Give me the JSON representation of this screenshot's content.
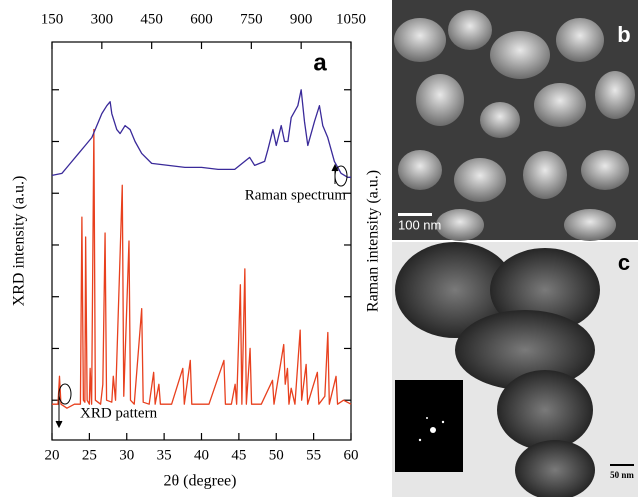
{
  "chart_data": {
    "type": "line",
    "xlabel": "2θ (degree)",
    "ylabel": "XRD intensity (a.u.)",
    "y2label": "Raman intensity (a.u.)",
    "panel_label": "a",
    "xlim": [
      20,
      60
    ],
    "xticks": [
      20,
      25,
      30,
      35,
      40,
      45,
      50,
      55,
      60
    ],
    "x2lim": [
      150,
      1050
    ],
    "x2ticks": [
      150,
      300,
      450,
      600,
      750,
      900,
      1050
    ],
    "ylim": [
      0,
      100
    ],
    "yticks": [
      10,
      23,
      36,
      49,
      62,
      75,
      88
    ],
    "series": [
      {
        "name": "XRD pattern",
        "color": "#e8401e",
        "axis": "x",
        "x": [
          20,
          20.8,
          21,
          21.2,
          22,
          23,
          23.8,
          24,
          24.2,
          24.4,
          24.5,
          24.7,
          25,
          25.1,
          25.3,
          25.6,
          25.8,
          26.5,
          26.8,
          27.1,
          27.3,
          28,
          28.2,
          28.5,
          29.4,
          29.6,
          30.3,
          30.5,
          31,
          32,
          32.2,
          33,
          33.6,
          33.8,
          34.3,
          34.5,
          36,
          37.5,
          37.7,
          38.5,
          38.7,
          40,
          41,
          43,
          43.2,
          44,
          44.5,
          44.7,
          45.2,
          45.4,
          45.8,
          46,
          46.5,
          46.7,
          48,
          49.5,
          49.7,
          51,
          51.2,
          51.5,
          51.7,
          52,
          52.5,
          53.2,
          53.4,
          54,
          54.2,
          55,
          55.5,
          55.7,
          56.5,
          56.9,
          57.1,
          58,
          58.2,
          59,
          60
        ],
        "values": [
          9,
          9,
          16,
          9,
          8,
          9,
          9,
          56,
          10,
          9.5,
          51,
          10,
          9,
          18,
          9,
          78,
          10,
          9,
          14,
          52,
          10,
          9.5,
          16,
          10,
          64,
          11,
          50,
          10,
          9,
          33,
          9.5,
          9,
          17,
          9,
          14,
          9,
          9,
          18,
          9,
          20,
          9,
          9,
          9,
          20,
          9,
          9,
          14,
          9,
          39,
          9,
          43,
          9,
          23,
          9,
          9,
          15,
          9,
          24,
          14,
          18,
          9,
          13,
          9,
          27.6,
          10,
          19,
          9,
          14,
          17,
          9,
          11,
          27,
          9,
          16,
          9,
          10,
          9
        ]
      },
      {
        "name": "Raman spectrum",
        "color": "#3a2a9a",
        "axis": "x2",
        "x": [
          150,
          180,
          200,
          230,
          250,
          270,
          290,
          300,
          315,
          325,
          330,
          345,
          355,
          370,
          385,
          400,
          420,
          450,
          500,
          550,
          600,
          650,
          700,
          730,
          745,
          760,
          790,
          800,
          815,
          825,
          840,
          850,
          860,
          870,
          890,
          900,
          910,
          920,
          940,
          955,
          965,
          980,
          1000,
          1020,
          1040,
          1050
        ],
        "values": [
          66.5,
          67,
          69,
          72,
          74,
          76,
          80,
          82,
          84,
          85,
          82,
          78,
          77,
          79,
          78,
          75,
          72,
          69.5,
          69,
          68.5,
          68.5,
          68,
          68,
          70,
          71,
          69,
          70,
          73,
          78,
          74,
          79,
          75,
          75,
          81,
          84,
          88,
          80,
          74,
          80,
          84,
          79,
          76,
          70,
          67,
          66,
          66
        ]
      }
    ],
    "panels": [
      {
        "label": "b",
        "scale_bar": "100 nm"
      },
      {
        "label": "c",
        "scale_bar": "50 nm"
      }
    ]
  }
}
